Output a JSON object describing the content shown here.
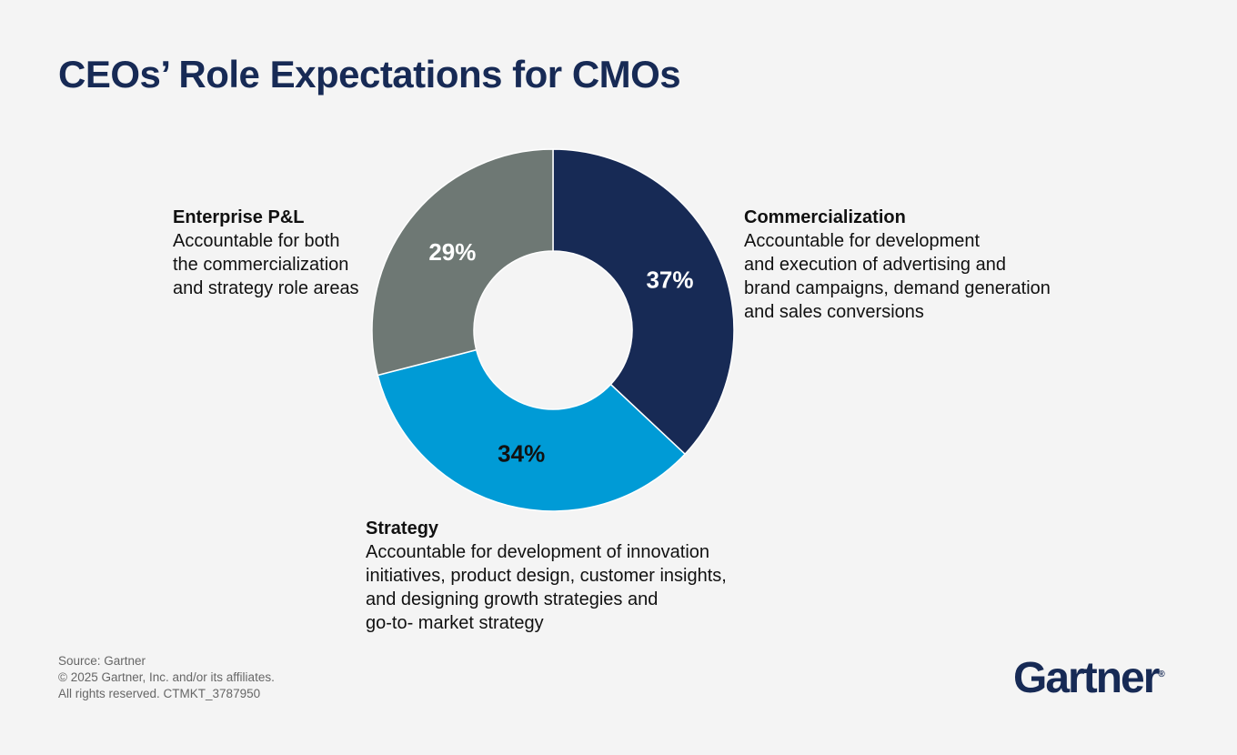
{
  "title": "CEOs’ Role Expectations for CMOs",
  "chart_data": {
    "type": "pie",
    "donut": true,
    "start": "top, clockwise",
    "series": [
      {
        "name": "Commercialization",
        "value": 37,
        "label": "37%",
        "color": "#172a55",
        "label_color": "#ffffff",
        "description": "Accountable for development\nand execution of advertising and\nbrand campaigns, demand generation\nand sales conversions"
      },
      {
        "name": "Strategy",
        "value": 34,
        "label": "34%",
        "color": "#009bd6",
        "label_color": "#111111",
        "description": "Accountable for development of innovation\ninitiatives, product design, customer insights,\nand designing growth strategies and\ngo-to- market strategy"
      },
      {
        "name": "Enterprise P&L",
        "value": 29,
        "label": "29%",
        "color": "#6e7874",
        "label_color": "#ffffff",
        "description": "Accountable for both\nthe commercialization\nand strategy role areas"
      }
    ]
  },
  "footer": {
    "source": "Source: Gartner",
    "copyright": "© 2025 Gartner, Inc. and/or its affiliates.",
    "rights": "All rights reserved. CTMKT_3787950"
  },
  "logo": {
    "text": "Gartner",
    "mark": "®"
  }
}
